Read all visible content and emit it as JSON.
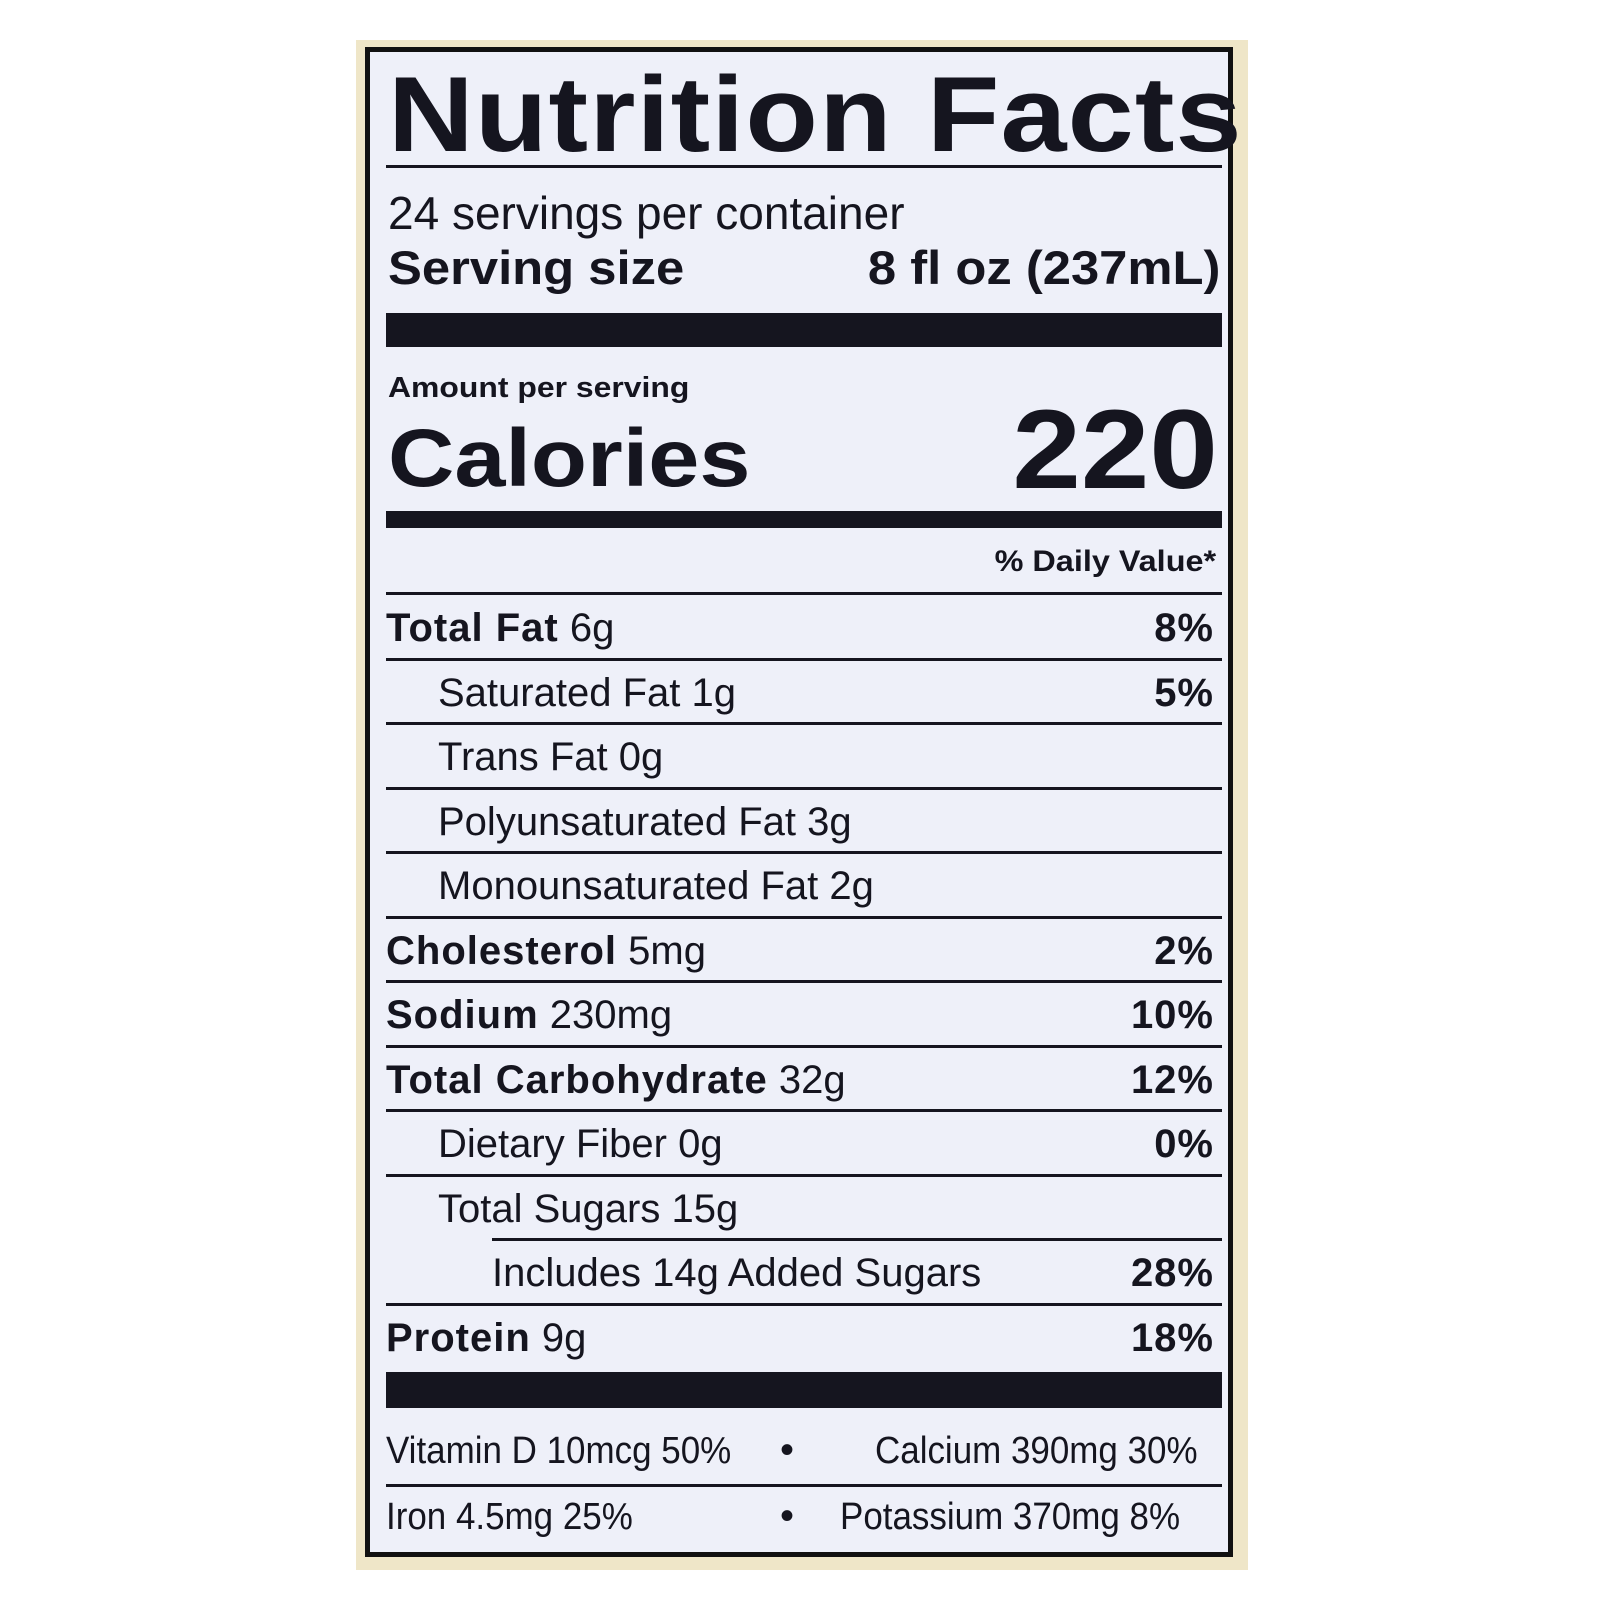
{
  "title": "Nutrition Facts",
  "servings_per_container": "24 servings per container",
  "serving_size": {
    "label": "Serving size",
    "value": "8 fl oz (237mL)"
  },
  "amount_per_serving": "Amount per serving",
  "calories": {
    "label": "Calories",
    "value": "220"
  },
  "daily_value_header": "% Daily Value*",
  "nutrients": [
    {
      "name": "Total Fat",
      "amount": "6g",
      "dv": "8%",
      "bold": true,
      "indent": 0
    },
    {
      "name": "Saturated Fat",
      "amount": "1g",
      "dv": "5%",
      "bold": false,
      "indent": 1
    },
    {
      "name": "Trans Fat",
      "amount": "0g",
      "dv": "",
      "bold": false,
      "indent": 1
    },
    {
      "name": "Polyunsaturated Fat",
      "amount": "3g",
      "dv": "",
      "bold": false,
      "indent": 1
    },
    {
      "name": "Monounsaturated Fat",
      "amount": "2g",
      "dv": "",
      "bold": false,
      "indent": 1
    },
    {
      "name": "Cholesterol",
      "amount": "5mg",
      "dv": "2%",
      "bold": true,
      "indent": 0
    },
    {
      "name": "Sodium",
      "amount": "230mg",
      "dv": "10%",
      "bold": true,
      "indent": 0
    },
    {
      "name": "Total Carbohydrate",
      "amount": "32g",
      "dv": "12%",
      "bold": true,
      "indent": 0
    },
    {
      "name": "Dietary Fiber",
      "amount": "0g",
      "dv": "0%",
      "bold": false,
      "indent": 1
    },
    {
      "name": "Total Sugars",
      "amount": "15g",
      "dv": "",
      "bold": false,
      "indent": 1
    },
    {
      "name": "Includes 14g Added Sugars",
      "amount": "",
      "dv": "28%",
      "bold": false,
      "indent": 2
    },
    {
      "name": "Protein",
      "amount": "9g",
      "dv": "18%",
      "bold": true,
      "indent": 0
    }
  ],
  "vitamins": [
    {
      "text": "Vitamin D 10mcg  50%"
    },
    {
      "text": "Calcium 390mg  30%"
    },
    {
      "text": "Iron 4.5mg  25%"
    },
    {
      "text": "Potassium 370mg  8%"
    }
  ],
  "bullet": "•",
  "colors": {
    "frame": "#efe6c8",
    "label_bg": "#eef0f9",
    "ink": "#15151f"
  }
}
